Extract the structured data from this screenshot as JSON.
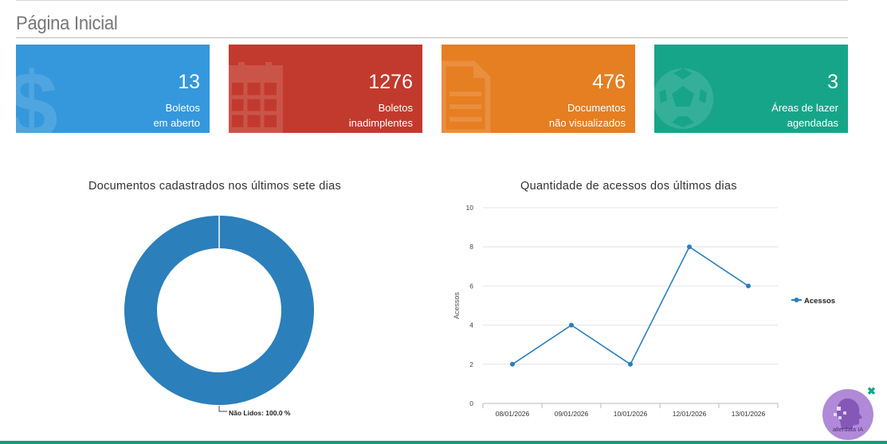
{
  "page": {
    "title": "Página Inicial"
  },
  "cards": [
    {
      "value": "13",
      "line1": "Boletos",
      "line2": "em aberto",
      "color": "#3598dc",
      "icon": "dollar-icon"
    },
    {
      "value": "1276",
      "line1": "Boletos",
      "line2": "inadimplentes",
      "color": "#c23a2d",
      "icon": "calendar-icon"
    },
    {
      "value": "476",
      "line1": "Documentos",
      "line2": "não visualizados",
      "color": "#e67e22",
      "icon": "document-icon"
    },
    {
      "value": "3",
      "line1": "Áreas de lazer",
      "line2": "agendadas",
      "color": "#17a589",
      "icon": "soccer-ball-icon"
    }
  ],
  "donut": {
    "title": "Documentos cadastrados nos últimos sete dias",
    "label": "Não Lidos: 100.0 %",
    "color": "#2b7fbb"
  },
  "line": {
    "title": "Quantidade de acessos dos últimos dias",
    "color": "#2b7fbb"
  },
  "chart_data": [
    {
      "type": "pie",
      "title": "Documentos cadastrados nos últimos sete dias",
      "categories": [
        "Não Lidos"
      ],
      "values": [
        100.0
      ]
    },
    {
      "type": "line",
      "title": "Quantidade de acessos dos últimos dias",
      "categories": [
        "08/01/2026",
        "09/01/2026",
        "10/01/2026",
        "12/01/2026",
        "13/01/2026"
      ],
      "series": [
        {
          "name": "Acessos",
          "values": [
            2,
            4,
            2,
            8,
            6
          ]
        }
      ],
      "ylabel": "Acessos",
      "ylim": [
        0,
        10
      ],
      "yticks": [
        "0",
        "2",
        "4",
        "6",
        "8",
        "10"
      ],
      "grid": true,
      "legend": "right"
    }
  ],
  "assistant": {
    "label": "alterdata IA",
    "close": "✖"
  }
}
